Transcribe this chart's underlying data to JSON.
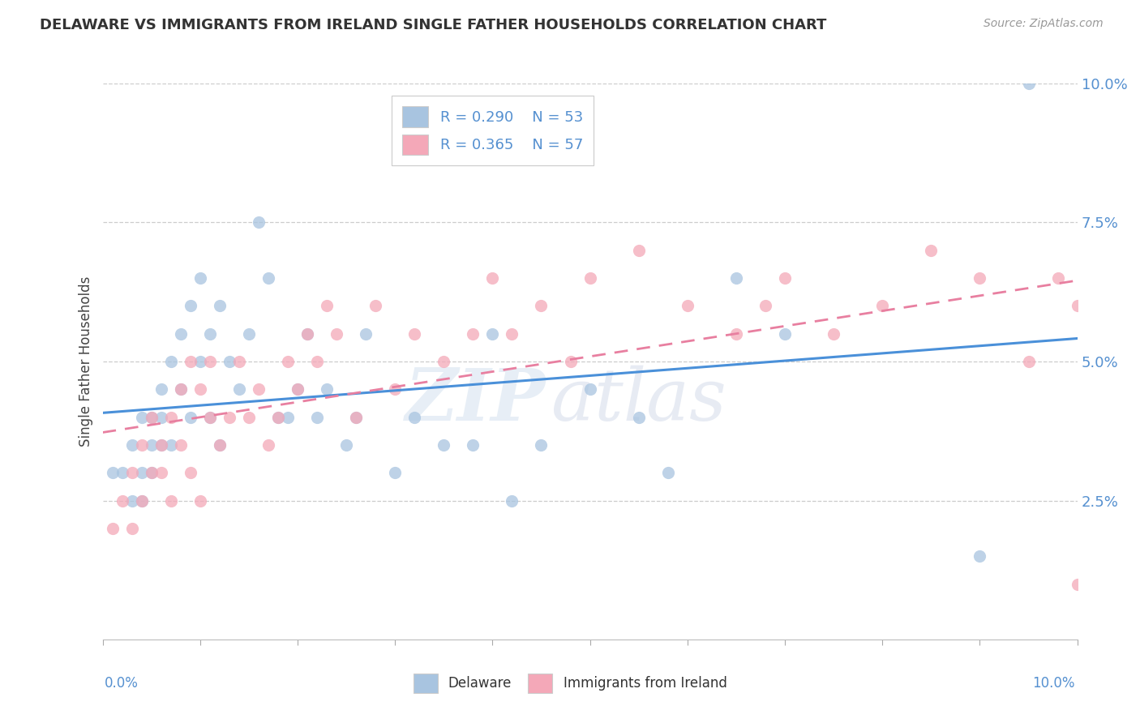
{
  "title": "DELAWARE VS IMMIGRANTS FROM IRELAND SINGLE FATHER HOUSEHOLDS CORRELATION CHART",
  "source": "Source: ZipAtlas.com",
  "ylabel": "Single Father Households",
  "xlim": [
    0.0,
    0.1
  ],
  "ylim": [
    0.0,
    0.1
  ],
  "delaware_R": 0.29,
  "delaware_N": 53,
  "ireland_R": 0.365,
  "ireland_N": 57,
  "delaware_color": "#a8c4e0",
  "ireland_color": "#f4a8b8",
  "delaware_line_color": "#4a90d9",
  "ireland_line_color": "#e87fa0",
  "background_color": "#ffffff",
  "grid_color": "#cccccc",
  "ytick_vals": [
    0.025,
    0.05,
    0.075,
    0.1
  ],
  "ytick_labels": [
    "2.5%",
    "5.0%",
    "7.5%",
    "10.0%"
  ],
  "delaware_x": [
    0.001,
    0.002,
    0.003,
    0.003,
    0.004,
    0.004,
    0.004,
    0.005,
    0.005,
    0.005,
    0.006,
    0.006,
    0.006,
    0.007,
    0.007,
    0.008,
    0.008,
    0.009,
    0.009,
    0.01,
    0.01,
    0.011,
    0.011,
    0.012,
    0.012,
    0.013,
    0.014,
    0.015,
    0.016,
    0.017,
    0.018,
    0.019,
    0.02,
    0.021,
    0.022,
    0.023,
    0.025,
    0.026,
    0.027,
    0.03,
    0.032,
    0.035,
    0.038,
    0.04,
    0.042,
    0.045,
    0.05,
    0.055,
    0.058,
    0.065,
    0.07,
    0.09,
    0.095
  ],
  "delaware_y": [
    0.03,
    0.03,
    0.035,
    0.025,
    0.04,
    0.03,
    0.025,
    0.04,
    0.035,
    0.03,
    0.045,
    0.04,
    0.035,
    0.05,
    0.035,
    0.055,
    0.045,
    0.06,
    0.04,
    0.065,
    0.05,
    0.04,
    0.055,
    0.06,
    0.035,
    0.05,
    0.045,
    0.055,
    0.075,
    0.065,
    0.04,
    0.04,
    0.045,
    0.055,
    0.04,
    0.045,
    0.035,
    0.04,
    0.055,
    0.03,
    0.04,
    0.035,
    0.035,
    0.055,
    0.025,
    0.035,
    0.045,
    0.04,
    0.03,
    0.065,
    0.055,
    0.015,
    0.1
  ],
  "ireland_x": [
    0.001,
    0.002,
    0.003,
    0.003,
    0.004,
    0.004,
    0.005,
    0.005,
    0.006,
    0.006,
    0.007,
    0.007,
    0.008,
    0.008,
    0.009,
    0.009,
    0.01,
    0.01,
    0.011,
    0.011,
    0.012,
    0.013,
    0.014,
    0.015,
    0.016,
    0.017,
    0.018,
    0.019,
    0.02,
    0.021,
    0.022,
    0.023,
    0.024,
    0.026,
    0.028,
    0.03,
    0.032,
    0.035,
    0.038,
    0.04,
    0.042,
    0.045,
    0.048,
    0.05,
    0.055,
    0.06,
    0.065,
    0.068,
    0.07,
    0.075,
    0.08,
    0.085,
    0.09,
    0.095,
    0.098,
    0.1,
    0.1
  ],
  "ireland_y": [
    0.02,
    0.025,
    0.02,
    0.03,
    0.025,
    0.035,
    0.03,
    0.04,
    0.035,
    0.03,
    0.04,
    0.025,
    0.045,
    0.035,
    0.05,
    0.03,
    0.045,
    0.025,
    0.05,
    0.04,
    0.035,
    0.04,
    0.05,
    0.04,
    0.045,
    0.035,
    0.04,
    0.05,
    0.045,
    0.055,
    0.05,
    0.06,
    0.055,
    0.04,
    0.06,
    0.045,
    0.055,
    0.05,
    0.055,
    0.065,
    0.055,
    0.06,
    0.05,
    0.065,
    0.07,
    0.06,
    0.055,
    0.06,
    0.065,
    0.055,
    0.06,
    0.07,
    0.065,
    0.05,
    0.065,
    0.01,
    0.06
  ]
}
